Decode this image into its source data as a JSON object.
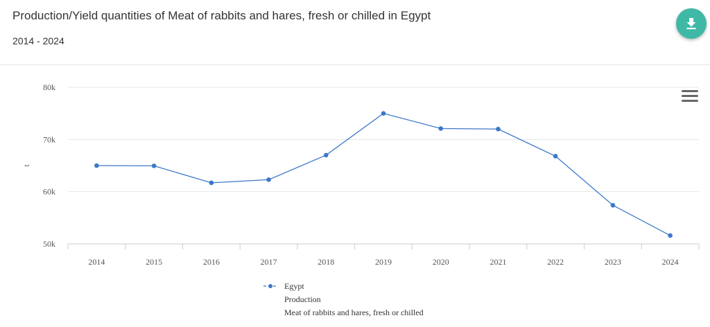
{
  "header": {
    "title": "Production/Yield quantities of Meat of rabbits and hares, fresh or chilled in Egypt",
    "subtitle": "2014 - 2024"
  },
  "colors": {
    "series": "#3c78c9",
    "download_button": "#3fb9a6",
    "gridline": "#e6e6e6"
  },
  "icons": {
    "download": "download-icon",
    "menu": "hamburger-menu-icon"
  },
  "chart_data": {
    "type": "line",
    "title": "Production/Yield quantities of Meat of rabbits and hares, fresh or chilled in Egypt",
    "subtitle": "2014 - 2024",
    "xlabel": "",
    "ylabel": "t",
    "ylim": [
      50000,
      80000
    ],
    "y_ticks": [
      50000,
      60000,
      70000,
      80000
    ],
    "y_tick_labels": [
      "50k",
      "60k",
      "70k",
      "80k"
    ],
    "grid": true,
    "legend_position": "bottom-center",
    "categories": [
      "2014",
      "2015",
      "2016",
      "2017",
      "2018",
      "2019",
      "2020",
      "2021",
      "2022",
      "2023",
      "2024"
    ],
    "series": [
      {
        "name": "Egypt",
        "legend_lines": [
          "Egypt",
          "Production",
          "Meat of rabbits and hares, fresh or chilled"
        ],
        "color": "#3c78c9",
        "values": [
          65000,
          64950,
          61700,
          62300,
          67000,
          75000,
          72100,
          72000,
          66800,
          57400,
          51600
        ]
      }
    ]
  }
}
